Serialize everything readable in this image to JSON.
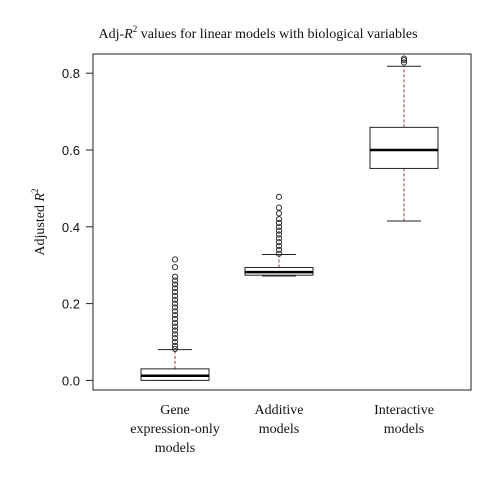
{
  "chart_data": {
    "type": "boxplot",
    "title": {
      "prefix": "Adj-",
      "var": "R",
      "sup": "2",
      "suffix": " values for linear models with biological variables"
    },
    "ylabel": {
      "prefix": "Adjusted ",
      "var": "R",
      "sup": "2"
    },
    "xlabel": "",
    "ylim": [
      -0.025,
      0.85
    ],
    "yticks": [
      0.0,
      0.2,
      0.4,
      0.6,
      0.8
    ],
    "ytick_labels": [
      "0.0",
      "0.2",
      "0.4",
      "0.6",
      "0.8"
    ],
    "grid": false,
    "boxes": [
      {
        "label_lines": [
          "Gene",
          "expression-only",
          "models"
        ],
        "whisker_low": 0.0,
        "q1": 0.0,
        "median": 0.012,
        "q3": 0.03,
        "whisker_high": 0.08,
        "outliers": [
          0.082,
          0.09,
          0.1,
          0.11,
          0.12,
          0.13,
          0.14,
          0.15,
          0.16,
          0.17,
          0.18,
          0.19,
          0.2,
          0.21,
          0.22,
          0.23,
          0.24,
          0.25,
          0.26,
          0.27,
          0.295,
          0.315
        ]
      },
      {
        "label_lines": [
          "Additive",
          "models"
        ],
        "whisker_low": 0.272,
        "q1": 0.274,
        "median": 0.282,
        "q3": 0.294,
        "whisker_high": 0.328,
        "outliers": [
          0.33,
          0.34,
          0.35,
          0.36,
          0.37,
          0.38,
          0.39,
          0.4,
          0.41,
          0.42,
          0.435,
          0.45,
          0.478
        ]
      },
      {
        "label_lines": [
          "Interactive",
          "models"
        ],
        "whisker_low": 0.415,
        "q1": 0.552,
        "median": 0.6,
        "q3": 0.659,
        "whisker_high": 0.818,
        "outliers": [
          0.828,
          0.834,
          0.838
        ]
      }
    ]
  }
}
